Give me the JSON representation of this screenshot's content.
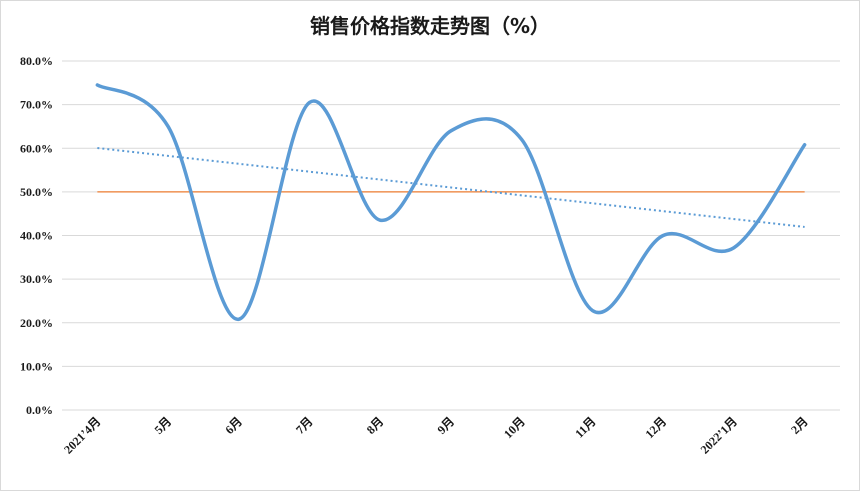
{
  "chart_data": {
    "type": "line",
    "title": "销售价格指数走势图（%）",
    "categories": [
      "2021’4月",
      "5月",
      "6月",
      "7月",
      "8月",
      "9月",
      "10月",
      "11月",
      "12月",
      "2022’1月",
      "2月"
    ],
    "series": [
      {
        "values": [
          74.5,
          65.0,
          20.8,
          70.5,
          43.5,
          64.0,
          62.0,
          22.8,
          40.0,
          37.2,
          60.8
        ],
        "color": "#5b9bd5",
        "style": "smooth"
      }
    ],
    "trendline": {
      "type": "linear",
      "color": "#5b9bd5",
      "style": "dotted"
    },
    "reference_line": {
      "value": 50.0,
      "color": "#ed7d31"
    },
    "ylim": [
      0,
      80
    ],
    "yticks": [
      "0.0%",
      "10.0%",
      "20.0%",
      "30.0%",
      "40.0%",
      "50.0%",
      "60.0%",
      "70.0%",
      "80.0%"
    ],
    "grid": true,
    "legend": "none"
  }
}
